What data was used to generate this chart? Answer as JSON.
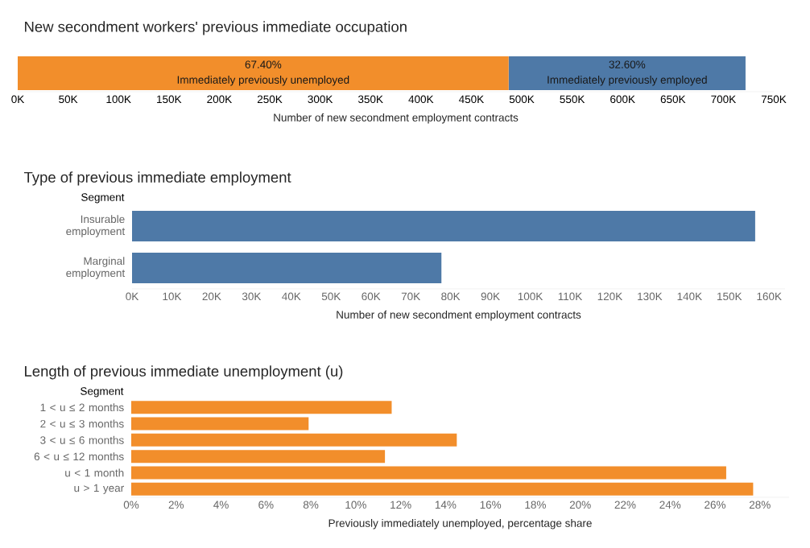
{
  "chart_data": [
    {
      "type": "bar",
      "orientation": "horizontal",
      "stacked": true,
      "title": "New secondment workers' previous immediate occupation",
      "xlabel": "Number of new secondment employment contracts",
      "categories": [
        null
      ],
      "series": [
        {
          "name": "Immediately previously unemployed",
          "color": "#f28e2b",
          "values": [
            487000
          ]
        },
        {
          "name": "Immediately previously employed",
          "color": "#4e79a7",
          "values": [
            235000
          ]
        }
      ],
      "annotations": [
        "67.40%",
        "32.60%"
      ],
      "xlim": [
        0,
        750000
      ],
      "xticks": [
        {
          "value": 0,
          "label": "0K"
        },
        {
          "value": 50000,
          "label": "50K"
        },
        {
          "value": 100000,
          "label": "100K"
        },
        {
          "value": 150000,
          "label": "150K"
        },
        {
          "value": 200000,
          "label": "200K"
        },
        {
          "value": 250000,
          "label": "250K"
        },
        {
          "value": 300000,
          "label": "300K"
        },
        {
          "value": 350000,
          "label": "350K"
        },
        {
          "value": 400000,
          "label": "400K"
        },
        {
          "value": 450000,
          "label": "450K"
        },
        {
          "value": 500000,
          "label": "500K"
        },
        {
          "value": 550000,
          "label": "550K"
        },
        {
          "value": 600000,
          "label": "600K"
        },
        {
          "value": 650000,
          "label": "650K"
        },
        {
          "value": 700000,
          "label": "700K"
        },
        {
          "value": 750000,
          "label": "750K"
        }
      ],
      "grid": false
    },
    {
      "type": "bar",
      "orientation": "horizontal",
      "title": "Type of previous immediate employment",
      "ylabel": "Segment",
      "xlabel": "Number of new secondment employment contracts",
      "categories": [
        "Insurable employment",
        "Marginal employment"
      ],
      "values": [
        156500,
        77700
      ],
      "color": "#4e79a7",
      "xlim": [
        0,
        164000
      ],
      "xticks": [
        {
          "value": 0,
          "label": "0K"
        },
        {
          "value": 10000,
          "label": "10K"
        },
        {
          "value": 20000,
          "label": "20K"
        },
        {
          "value": 30000,
          "label": "30K"
        },
        {
          "value": 40000,
          "label": "40K"
        },
        {
          "value": 50000,
          "label": "50K"
        },
        {
          "value": 60000,
          "label": "60K"
        },
        {
          "value": 70000,
          "label": "70K"
        },
        {
          "value": 80000,
          "label": "80K"
        },
        {
          "value": 90000,
          "label": "90K"
        },
        {
          "value": 100000,
          "label": "100K"
        },
        {
          "value": 110000,
          "label": "110K"
        },
        {
          "value": 120000,
          "label": "120K"
        },
        {
          "value": 130000,
          "label": "130K"
        },
        {
          "value": 140000,
          "label": "140K"
        },
        {
          "value": 150000,
          "label": "150K"
        },
        {
          "value": 160000,
          "label": "160K"
        }
      ],
      "grid": false
    },
    {
      "type": "bar",
      "orientation": "horizontal",
      "title": "Length of previous immediate unemployment (u)",
      "ylabel": "Segment",
      "xlabel": "Previously immediately unemployed, percentage share",
      "categories": [
        "1 < u ≤ 2 months",
        "2 < u ≤ 3 months",
        "3 < u ≤ 6 months",
        "6 < u ≤ 12 months",
        "u < 1 month",
        "u > 1 year"
      ],
      "values": [
        11.6,
        7.9,
        14.5,
        11.3,
        26.5,
        27.7
      ],
      "color": "#f28e2b",
      "xlim": [
        0,
        29.3
      ],
      "xticks": [
        {
          "value": 0,
          "label": "0%"
        },
        {
          "value": 2,
          "label": "2%"
        },
        {
          "value": 4,
          "label": "4%"
        },
        {
          "value": 6,
          "label": "6%"
        },
        {
          "value": 8,
          "label": "8%"
        },
        {
          "value": 10,
          "label": "10%"
        },
        {
          "value": 12,
          "label": "12%"
        },
        {
          "value": 14,
          "label": "14%"
        },
        {
          "value": 16,
          "label": "16%"
        },
        {
          "value": 18,
          "label": "18%"
        },
        {
          "value": 20,
          "label": "20%"
        },
        {
          "value": 22,
          "label": "22%"
        },
        {
          "value": 24,
          "label": "24%"
        },
        {
          "value": 26,
          "label": "26%"
        },
        {
          "value": 28,
          "label": "28%"
        }
      ],
      "grid": false
    }
  ]
}
